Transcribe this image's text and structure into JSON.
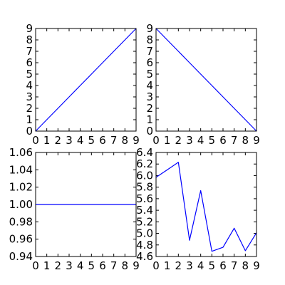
{
  "colors": {
    "line": "#0000ff",
    "axes": "#000000",
    "background": "#ffffff"
  },
  "chart_data": [
    {
      "type": "line",
      "panel": "top-left",
      "x": [
        0,
        1,
        2,
        3,
        4,
        5,
        6,
        7,
        8,
        9
      ],
      "series": [
        {
          "values": [
            0,
            1,
            2,
            3,
            4,
            5,
            6,
            7,
            8,
            9
          ]
        }
      ],
      "xlim": [
        0,
        9
      ],
      "ylim": [
        0,
        9
      ],
      "xticks": [
        "0",
        "1",
        "2",
        "3",
        "4",
        "5",
        "6",
        "7",
        "8",
        "9"
      ],
      "yticks": [
        "0",
        "1",
        "2",
        "3",
        "4",
        "5",
        "6",
        "7",
        "8",
        "9"
      ],
      "grid": false
    },
    {
      "type": "line",
      "panel": "top-right",
      "x": [
        0,
        1,
        2,
        3,
        4,
        5,
        6,
        7,
        8,
        9
      ],
      "series": [
        {
          "values": [
            9,
            8,
            7,
            6,
            5,
            4,
            3,
            2,
            1,
            0
          ]
        }
      ],
      "xlim": [
        0,
        9
      ],
      "ylim": [
        0,
        9
      ],
      "xticks": [
        "0",
        "1",
        "2",
        "3",
        "4",
        "5",
        "6",
        "7",
        "8",
        "9"
      ],
      "yticks": [
        "0",
        "1",
        "2",
        "3",
        "4",
        "5",
        "6",
        "7",
        "8",
        "9"
      ],
      "grid": false
    },
    {
      "type": "line",
      "panel": "bottom-left",
      "x": [
        0,
        1,
        2,
        3,
        4,
        5,
        6,
        7,
        8,
        9
      ],
      "series": [
        {
          "values": [
            1,
            1,
            1,
            1,
            1,
            1,
            1,
            1,
            1,
            1
          ]
        }
      ],
      "xlim": [
        0,
        9
      ],
      "ylim": [
        0.94,
        1.06
      ],
      "xticks": [
        "0",
        "1",
        "2",
        "3",
        "4",
        "5",
        "6",
        "7",
        "8",
        "9"
      ],
      "yticks": [
        "0.94",
        "0.96",
        "0.98",
        "1.00",
        "1.02",
        "1.04",
        "1.06"
      ],
      "grid": false
    },
    {
      "type": "line",
      "panel": "bottom-right",
      "x": [
        0,
        1,
        2,
        3,
        4,
        5,
        6,
        7,
        8,
        9
      ],
      "series": [
        {
          "values": [
            5.97,
            6.1,
            6.23,
            4.88,
            5.74,
            4.69,
            4.76,
            5.09,
            4.7,
            5.01
          ]
        }
      ],
      "xlim": [
        0,
        9
      ],
      "ylim": [
        4.6,
        6.4
      ],
      "xticks": [
        "0",
        "1",
        "2",
        "3",
        "4",
        "5",
        "6",
        "7",
        "8",
        "9"
      ],
      "yticks": [
        "4.6",
        "4.8",
        "5.0",
        "5.2",
        "5.4",
        "5.6",
        "5.8",
        "6.0",
        "6.2",
        "6.4"
      ],
      "grid": false
    }
  ]
}
